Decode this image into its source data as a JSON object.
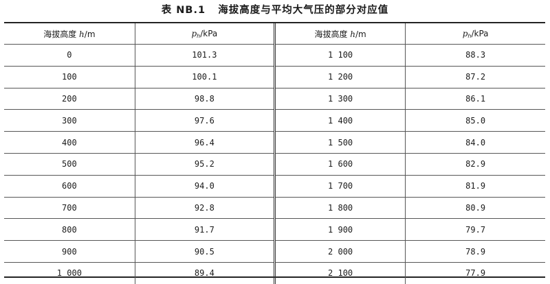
{
  "caption": "表 NB.1   海拔高度与平均大气压的部分对应值",
  "headers": {
    "altitude_label": "海拔高度 ",
    "altitude_symbol": "h",
    "altitude_unit": "/m",
    "pressure_symbol": "p",
    "pressure_subscript": "h",
    "pressure_unit": "/kPa"
  },
  "rows": [
    {
      "h1": "0",
      "p1": "101.3",
      "h2": "1 100",
      "p2": "88.3"
    },
    {
      "h1": "100",
      "p1": "100.1",
      "h2": "1 200",
      "p2": "87.2"
    },
    {
      "h1": "200",
      "p1": "98.8",
      "h2": "1 300",
      "p2": "86.1"
    },
    {
      "h1": "300",
      "p1": "97.6",
      "h2": "1 400",
      "p2": "85.0"
    },
    {
      "h1": "400",
      "p1": "96.4",
      "h2": "1 500",
      "p2": "84.0"
    },
    {
      "h1": "500",
      "p1": "95.2",
      "h2": "1 600",
      "p2": "82.9"
    },
    {
      "h1": "600",
      "p1": "94.0",
      "h2": "1 700",
      "p2": "81.9"
    },
    {
      "h1": "700",
      "p1": "92.8",
      "h2": "1 800",
      "p2": "80.9"
    },
    {
      "h1": "800",
      "p1": "91.7",
      "h2": "1 900",
      "p2": "79.7"
    },
    {
      "h1": "900",
      "p1": "90.5",
      "h2": "2 000",
      "p2": "78.9"
    },
    {
      "h1": "1 000",
      "p1": "89.4",
      "h2": "2 100",
      "p2": "77.9"
    }
  ]
}
